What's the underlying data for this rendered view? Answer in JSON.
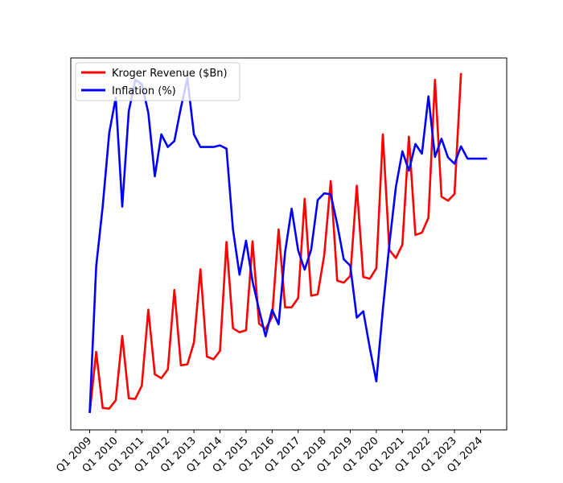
{
  "chart_data": {
    "type": "line",
    "title": "",
    "xlabel": "",
    "ylabel": "",
    "grid": false,
    "legend_position": "top-left",
    "y_ticks_shown": false,
    "ylim": [
      0,
      100
    ],
    "x_tick_labels": [
      "Q1 2009",
      "Q1 2010",
      "Q1 2011",
      "Q1 2012",
      "Q1 2013",
      "Q1 2014",
      "Q1 2015",
      "Q1 2016",
      "Q1 2017",
      "Q1 2018",
      "Q1 2019",
      "Q1 2020",
      "Q1 2021",
      "Q1 2022",
      "Q1 2023",
      "Q1 2024"
    ],
    "x_tick_positions": [
      0,
      4,
      8,
      12,
      16,
      20,
      24,
      28,
      32,
      36,
      40,
      44,
      48,
      52,
      56,
      60
    ],
    "series": [
      {
        "name": "Kroger Revenue ($Bn)",
        "color": "#ff0000",
        "x": [
          0,
          1,
          2,
          3,
          4,
          5,
          6,
          7,
          8,
          9,
          10,
          11,
          12,
          13,
          14,
          15,
          16,
          17,
          18,
          19,
          20,
          21,
          22,
          23,
          24,
          25,
          26,
          27,
          28,
          29,
          30,
          31,
          32,
          33,
          34,
          35,
          36,
          37,
          38,
          39,
          40,
          41,
          42,
          43,
          44,
          45,
          46,
          47,
          48,
          49,
          50,
          51,
          52,
          53,
          54,
          55,
          56,
          57
        ],
        "values": [
          0.0,
          18.3,
          1.5,
          1.3,
          3.8,
          23.1,
          4.4,
          4.2,
          8.2,
          31.0,
          11.6,
          10.4,
          13.1,
          36.9,
          14.3,
          14.6,
          21.1,
          43.1,
          16.9,
          16.1,
          18.6,
          51.3,
          25.4,
          24.2,
          24.8,
          51.5,
          26.8,
          25.2,
          28.8,
          55.1,
          31.7,
          31.7,
          34.5,
          64.3,
          35.2,
          35.6,
          47.3,
          69.6,
          39.7,
          39.1,
          41.1,
          68.2,
          40.8,
          40.3,
          43.4,
          83.6,
          48.9,
          46.5,
          50.5,
          82.9,
          53.4,
          54.1,
          58.6,
          100.0,
          64.9,
          63.7,
          65.7,
          102.0
        ]
      },
      {
        "name": "Inflation (%)",
        "color": "#0000ff",
        "x": [
          0,
          1,
          2,
          3,
          4,
          5,
          6,
          7,
          8,
          9,
          10,
          11,
          12,
          13,
          14,
          15,
          16,
          17,
          18,
          19,
          20,
          21,
          22,
          23,
          24,
          25,
          26,
          27,
          28,
          29,
          30,
          31,
          32,
          33,
          34,
          35,
          36,
          37,
          38,
          39,
          40,
          41,
          42,
          43,
          44,
          45,
          46,
          47,
          48,
          49,
          50,
          51,
          52,
          53,
          54,
          55,
          56,
          57,
          58,
          59,
          60,
          61
        ],
        "values": [
          0.0,
          44.0,
          62.0,
          84.0,
          94.6,
          61.9,
          90.5,
          100.0,
          98.7,
          90.1,
          71.0,
          83.6,
          79.8,
          81.6,
          91.6,
          100.4,
          83.6,
          79.8,
          79.8,
          79.8,
          80.3,
          79.3,
          55.0,
          41.5,
          51.7,
          39.5,
          31.0,
          23.0,
          31.0,
          26.6,
          48.3,
          61.3,
          48.8,
          43.0,
          49.0,
          63.9,
          65.9,
          65.6,
          56.6,
          46.1,
          44.2,
          28.6,
          30.5,
          19.5,
          9.5,
          31.0,
          50.6,
          67.8,
          78.5,
          72.7,
          80.7,
          77.8,
          95.0,
          76.8,
          82.3,
          76.7,
          74.8,
          80.0,
          76.3,
          76.3,
          76.3,
          76.3
        ]
      }
    ]
  }
}
